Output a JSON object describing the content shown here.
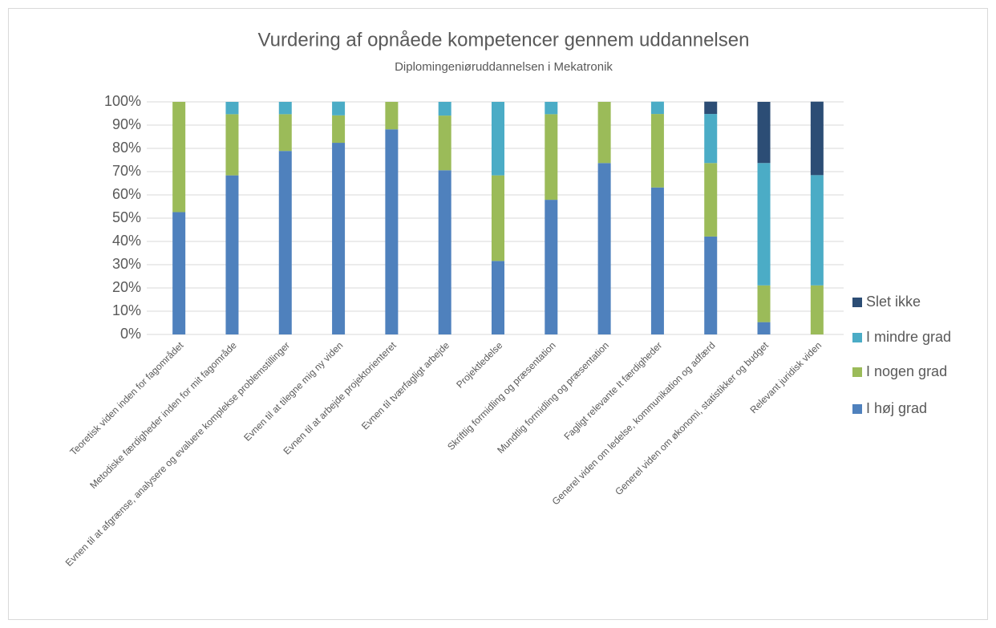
{
  "chart_data": {
    "type": "stacked_bar",
    "title": "Vurdering af opnåede kompetencer gennem uddannelsen",
    "subtitle": "Diplomingeniøruddannelsen i Mekatronik",
    "categories": [
      "Teoretisk viden inden for fagområdet",
      "Metodiske færdigheder inden for mit fagområde",
      "Evnen til at afgrænse, analysere og evaluere komplekse problemstillinger",
      "Evnen til at tilegne mig ny viden",
      "Evnen til at arbejde projektorienteret",
      "Evnen til tværfagligt arbejde",
      "Projektledelse",
      "Skriftlig formidling og præsentation",
      "Mundtlig formidling og præsentation",
      "Fagligt relevante It færdigheder",
      "Generel viden om ledelse, kommunikation og adfærd",
      "Generel viden om økonomi, statistikker og budget",
      "Relevant juridisk viden"
    ],
    "series": [
      {
        "name": "I høj grad",
        "color": "#4f81bd",
        "values": [
          52.6,
          68.4,
          78.9,
          82.4,
          88.2,
          70.6,
          31.6,
          57.9,
          73.7,
          63.2,
          42.1,
          5.3,
          0
        ]
      },
      {
        "name": "I nogen grad",
        "color": "#9bbb59",
        "values": [
          47.4,
          26.3,
          15.8,
          11.8,
          11.8,
          23.5,
          36.8,
          36.8,
          26.3,
          31.6,
          31.6,
          15.8,
          21.1
        ]
      },
      {
        "name": "I mindre grad",
        "color": "#4bacc6",
        "values": [
          0,
          5.3,
          5.3,
          5.9,
          0,
          5.9,
          31.6,
          5.3,
          0,
          5.3,
          21.1,
          52.6,
          47.4
        ]
      },
      {
        "name": "Slet ikke",
        "color": "#2c4d75",
        "values": [
          0,
          0,
          0,
          0,
          0,
          0,
          0,
          0,
          0,
          0,
          5.3,
          26.3,
          31.6
        ]
      }
    ],
    "ylim": [
      0,
      100
    ],
    "yticks": [
      {
        "value": 0,
        "label": "0%"
      },
      {
        "value": 10,
        "label": "10%"
      },
      {
        "value": 20,
        "label": "20%"
      },
      {
        "value": 30,
        "label": "30%"
      },
      {
        "value": 40,
        "label": "40%"
      },
      {
        "value": 50,
        "label": "50%"
      },
      {
        "value": 60,
        "label": "60%"
      },
      {
        "value": 70,
        "label": "70%"
      },
      {
        "value": 80,
        "label": "80%"
      },
      {
        "value": 90,
        "label": "90%"
      },
      {
        "value": 100,
        "label": "100%"
      }
    ],
    "grid": true,
    "legend": "right"
  }
}
